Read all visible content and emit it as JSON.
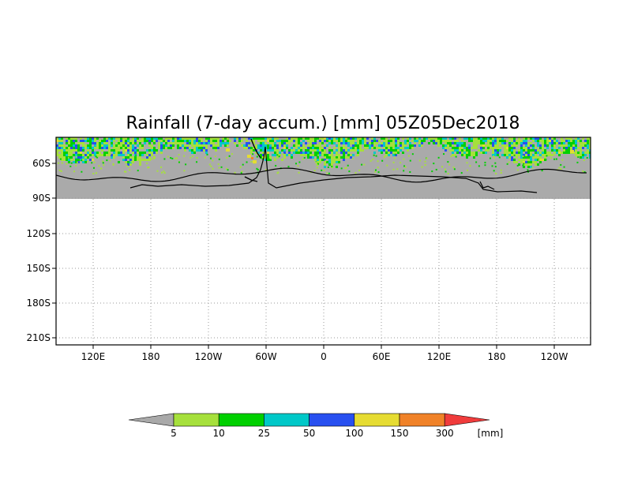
{
  "chart_data": {
    "type": "heatmap",
    "title": "Rainfall (7-day accum.) [mm] 05Z05Dec2018",
    "y_ticks": [
      "60S",
      "90S",
      "120S",
      "150S",
      "180S",
      "210S"
    ],
    "x_ticks": [
      "120E",
      "180",
      "120W",
      "60W",
      "0",
      "60E",
      "120E",
      "180",
      "120W"
    ],
    "grid": true,
    "colorbar": {
      "unit": "[mm]",
      "levels": [
        "5",
        "10",
        "25",
        "50",
        "100",
        "150",
        "300"
      ],
      "colors": [
        "#a9a9a9",
        "#a6e03c",
        "#00d000",
        "#00c8c8",
        "#2850f0",
        "#e6dc32",
        "#f08228",
        "#f03c3c"
      ]
    },
    "land_color": "#aaaaaa",
    "coastline_color": "#000000"
  }
}
